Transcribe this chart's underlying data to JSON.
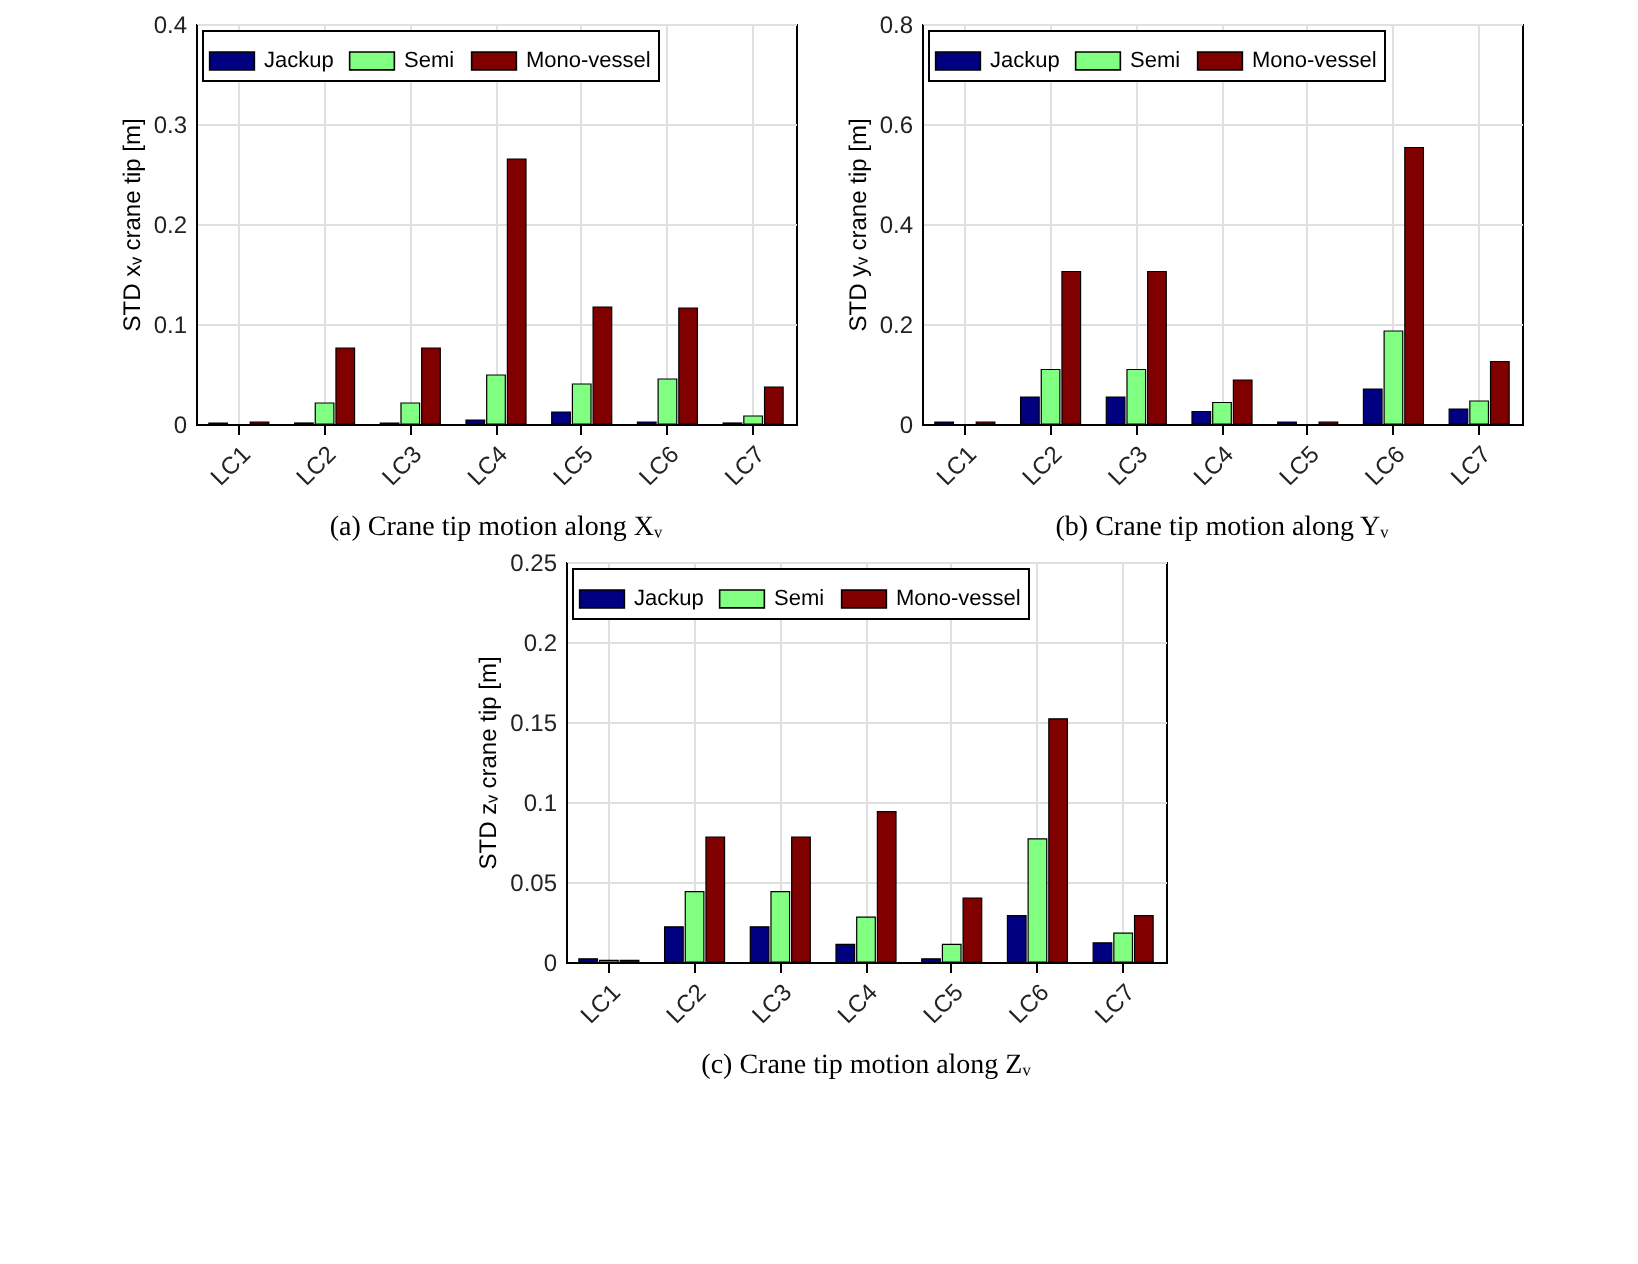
{
  "chart_data": [
    {
      "type": "bar",
      "title": "(a) Crane tip motion along Xᵥ",
      "ylabel": "STD xᵥ crane tip [m]",
      "categories": [
        "LC1",
        "LC2",
        "LC3",
        "LC4",
        "LC5",
        "LC6",
        "LC7"
      ],
      "series": [
        {
          "name": "Jackup",
          "color": "#000080",
          "values": [
            0.001,
            0.001,
            0.001,
            0.004,
            0.012,
            0.002,
            0.001
          ]
        },
        {
          "name": "Semi",
          "color": "#80ff80",
          "values": [
            null,
            0.021,
            0.021,
            0.049,
            0.04,
            0.045,
            0.008
          ]
        },
        {
          "name": "Mono-vessel",
          "color": "#800000",
          "values": [
            0.002,
            0.076,
            0.076,
            0.265,
            0.117,
            0.116,
            0.037
          ]
        }
      ],
      "ylim": [
        0,
        0.4
      ],
      "yticks": [
        0,
        0.1,
        0.2,
        0.3,
        0.4
      ],
      "grid": true,
      "legend": "top"
    },
    {
      "type": "bar",
      "title": "(b) Crane tip motion along Yᵥ",
      "ylabel": "STD yᵥ crane tip [m]",
      "categories": [
        "LC1",
        "LC2",
        "LC3",
        "LC4",
        "LC5",
        "LC6",
        "LC7"
      ],
      "series": [
        {
          "name": "Jackup",
          "color": "#000080",
          "values": [
            0.004,
            0.054,
            0.054,
            0.025,
            0.004,
            0.07,
            0.03
          ]
        },
        {
          "name": "Semi",
          "color": "#80ff80",
          "values": [
            null,
            0.109,
            0.109,
            0.043,
            null,
            0.186,
            0.046
          ]
        },
        {
          "name": "Mono-vessel",
          "color": "#800000",
          "values": [
            0.004,
            0.305,
            0.305,
            0.088,
            0.004,
            0.553,
            0.125
          ]
        }
      ],
      "ylim": [
        0,
        0.8
      ],
      "yticks": [
        0,
        0.2,
        0.4,
        0.6,
        0.8
      ],
      "grid": true,
      "legend": "top"
    },
    {
      "type": "bar",
      "title": "(c) Crane tip motion along Zᵥ",
      "ylabel": "STD zᵥ crane tip [m]",
      "categories": [
        "LC1",
        "LC2",
        "LC3",
        "LC4",
        "LC5",
        "LC6",
        "LC7"
      ],
      "series": [
        {
          "name": "Jackup",
          "color": "#000080",
          "values": [
            0.002,
            0.022,
            0.022,
            0.011,
            0.002,
            0.029,
            0.012
          ]
        },
        {
          "name": "Semi",
          "color": "#80ff80",
          "values": [
            0.001,
            0.044,
            0.044,
            0.028,
            0.011,
            0.077,
            0.018
          ]
        },
        {
          "name": "Mono-vessel",
          "color": "#800000",
          "values": [
            0.001,
            0.078,
            0.078,
            0.094,
            0.04,
            0.152,
            0.029
          ]
        }
      ],
      "ylim": [
        0,
        0.25
      ],
      "yticks": [
        0,
        0.05,
        0.1,
        0.15,
        0.2,
        0.25
      ],
      "grid": true,
      "legend": "top"
    }
  ]
}
